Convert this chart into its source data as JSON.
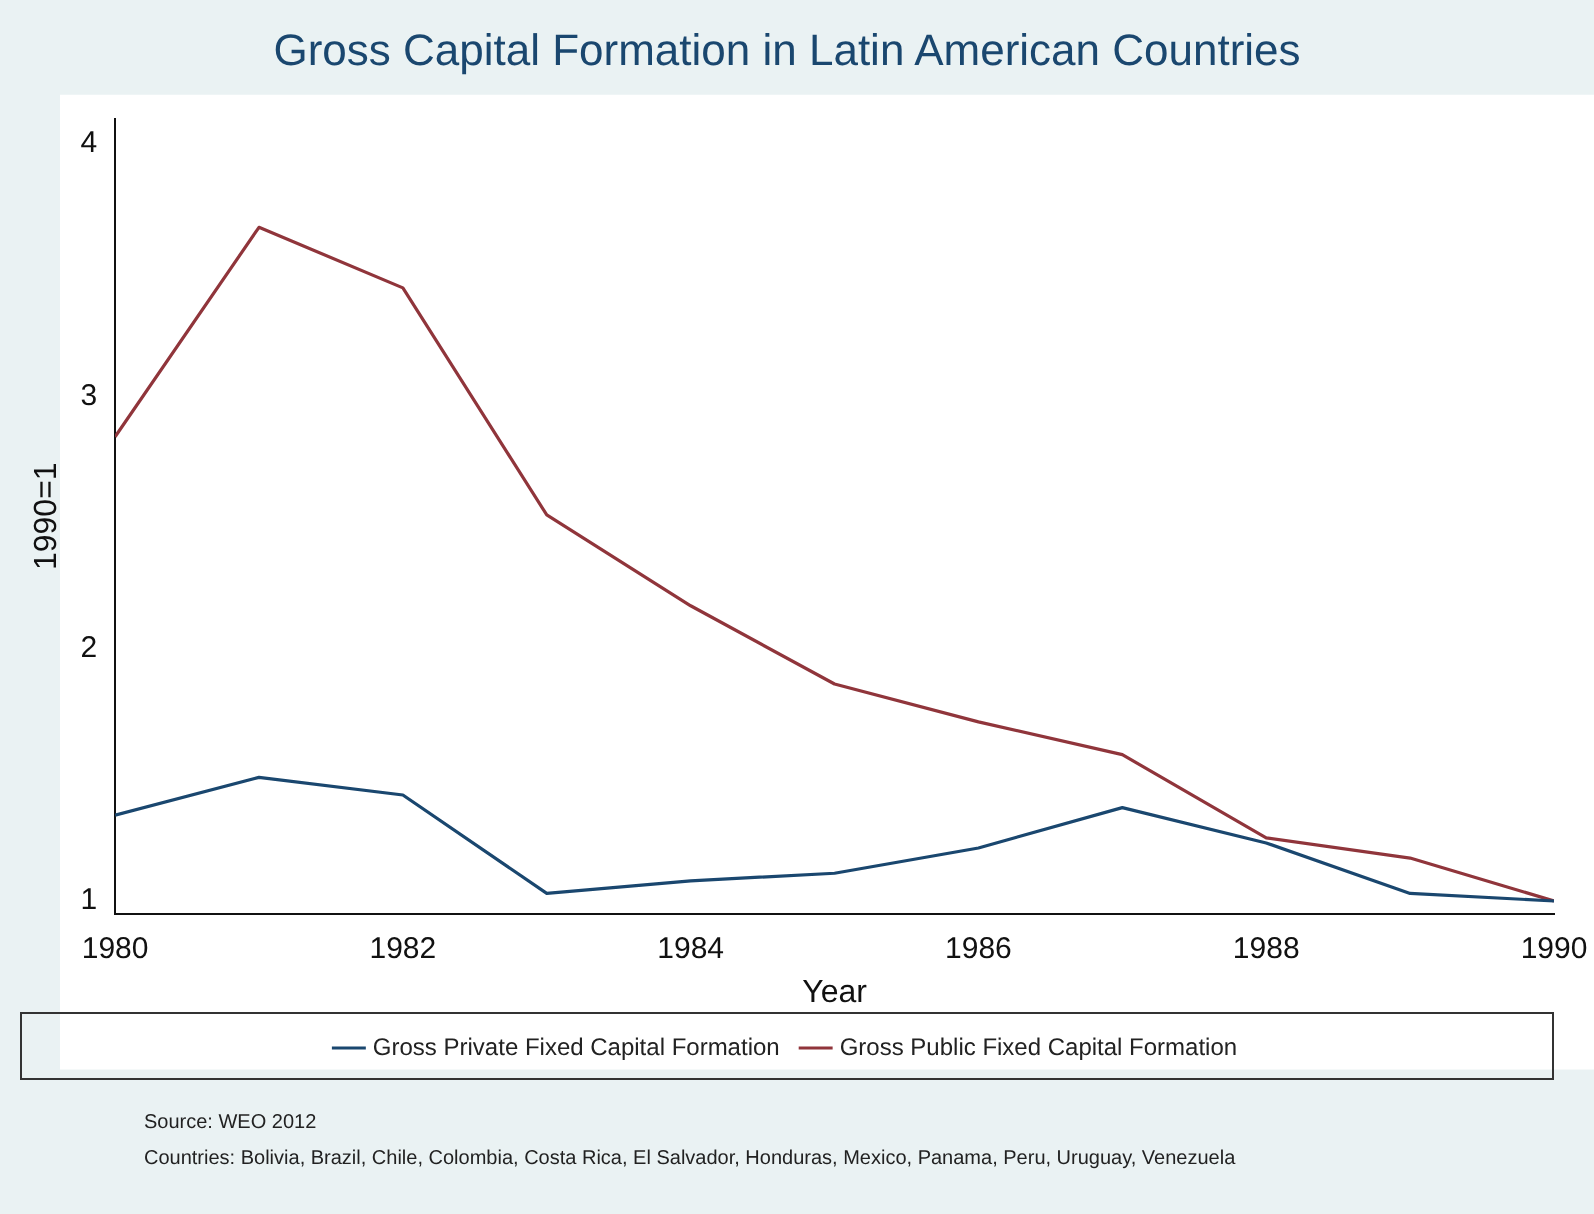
{
  "chart_data": {
    "type": "line",
    "title": "Gross Capital Formation in Latin American Countries",
    "xlabel": "Year",
    "ylabel": "1990=1",
    "x": [
      1980,
      1981,
      1982,
      1983,
      1984,
      1985,
      1986,
      1987,
      1988,
      1989,
      1990
    ],
    "series": [
      {
        "name": "Gross Private Fixed Capital Formation",
        "color": "#1a476f",
        "values": [
          1.34,
          1.49,
          1.42,
          1.03,
          1.08,
          1.11,
          1.21,
          1.37,
          1.23,
          1.03,
          1.0
        ]
      },
      {
        "name": "Gross Public Fixed Capital Formation",
        "color": "#90353b",
        "values": [
          2.84,
          3.67,
          3.43,
          2.53,
          2.17,
          1.86,
          1.71,
          1.58,
          1.25,
          1.17,
          1.0
        ]
      }
    ],
    "xlim": [
      1980,
      1990
    ],
    "xticks": [
      1980,
      1982,
      1984,
      1986,
      1988,
      1990
    ],
    "ylim": [
      0.95,
      4.1
    ],
    "yticks": [
      1,
      2,
      3,
      4
    ],
    "grid": false,
    "legend": "bottom",
    "marker": "none",
    "line_style": "solid",
    "annotations": [
      "Source: WEO 2012",
      "Countries: Bolivia, Brazil, Chile, Colombia, Costa Rica, El Salvador, Honduras, Mexico, Panama, Peru, Uruguay, Venezuela"
    ]
  }
}
